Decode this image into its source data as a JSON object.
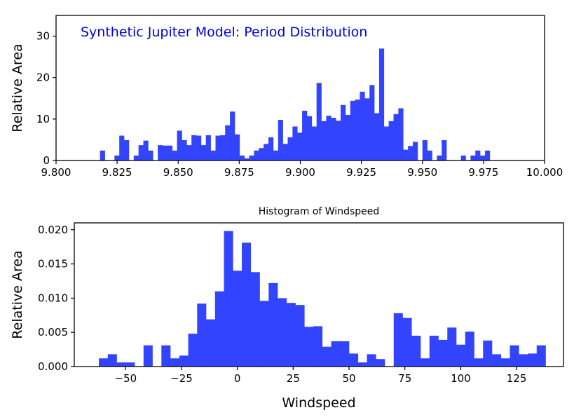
{
  "chart_data": [
    {
      "type": "bar",
      "title": "Synthetic Jupiter Model: Period Distribution",
      "xlabel": "",
      "ylabel": "Relative Area",
      "xlim": [
        9.8,
        10.0
      ],
      "ylim": [
        0,
        35
      ],
      "xticks": [
        "9.800",
        "9.825",
        "9.850",
        "9.875",
        "9.900",
        "9.925",
        "9.950",
        "9.975",
        "10.000"
      ],
      "xtick_values": [
        9.8,
        9.825,
        9.85,
        9.875,
        9.9,
        9.925,
        9.95,
        9.975,
        10.0
      ],
      "yticks": [
        "0",
        "10",
        "20",
        "30"
      ],
      "ytick_values": [
        0,
        10,
        20,
        30
      ],
      "color": "#3344ff",
      "title_color": "#0000ee",
      "bins": {
        "start": 9.818,
        "width": 0.00197
      },
      "values": [
        2.4,
        0,
        0,
        1.2,
        6.0,
        4.9,
        0,
        1.2,
        3.7,
        4.8,
        2.4,
        0,
        3.7,
        3.6,
        3.6,
        2.4,
        7.2,
        4.9,
        3.7,
        6.1,
        6.0,
        3.7,
        6.1,
        2.4,
        6.0,
        6.1,
        8.5,
        11.8,
        6.3,
        1.2,
        0.5,
        1.2,
        2.4,
        3.0,
        4.0,
        5.6,
        2.4,
        9.8,
        4.0,
        5.6,
        8.2,
        6.7,
        12.0,
        10.7,
        8.2,
        18.7,
        9.5,
        10.8,
        10.3,
        9.6,
        13.4,
        11.0,
        14.4,
        14.7,
        16.6,
        15.0,
        18.2,
        11.4,
        27.0,
        8.2,
        9.5,
        11.2,
        12.6,
        2.6,
        3.5,
        4.5,
        0,
        4.9,
        2.4,
        0,
        1.2,
        4.9,
        0,
        0,
        0,
        1.2,
        0,
        1.2,
        2.4,
        1.2,
        2.4
      ]
    },
    {
      "type": "bar",
      "title": "Histogram of Windspeed",
      "xlabel": "Windspeed",
      "ylabel": "Relative Area",
      "xlim": [
        -73,
        146
      ],
      "ylim": [
        0,
        0.021
      ],
      "xticks": [
        "−50",
        "−25",
        "0",
        "25",
        "50",
        "75",
        "100",
        "125"
      ],
      "xtick_values": [
        -50,
        -25,
        0,
        25,
        50,
        75,
        100,
        125
      ],
      "yticks": [
        "0.000",
        "0.005",
        "0.010",
        "0.015",
        "0.020"
      ],
      "ytick_values": [
        0,
        0.005,
        0.01,
        0.015,
        0.02
      ],
      "color": "#3344ff",
      "bins": {
        "start": -62,
        "width": 4
      },
      "values": [
        0.0012,
        0.0018,
        0.0006,
        0.0006,
        0,
        0.0031,
        0,
        0.0031,
        0.0012,
        0.0016,
        0.0048,
        0.0092,
        0.0069,
        0.011,
        0.0198,
        0.014,
        0.0181,
        0.0138,
        0.0096,
        0.0122,
        0.01,
        0.0093,
        0.009,
        0.0058,
        0.0059,
        0.0029,
        0.0037,
        0.0037,
        0.0019,
        0.0006,
        0.0018,
        0.0011,
        0,
        0.0078,
        0.0071,
        0.0045,
        0.0012,
        0.0045,
        0.0039,
        0.0057,
        0.0032,
        0.0051,
        0.0012,
        0.0038,
        0.0018,
        0.0012,
        0.0031,
        0.0018,
        0.0019,
        0.0031
      ]
    }
  ]
}
